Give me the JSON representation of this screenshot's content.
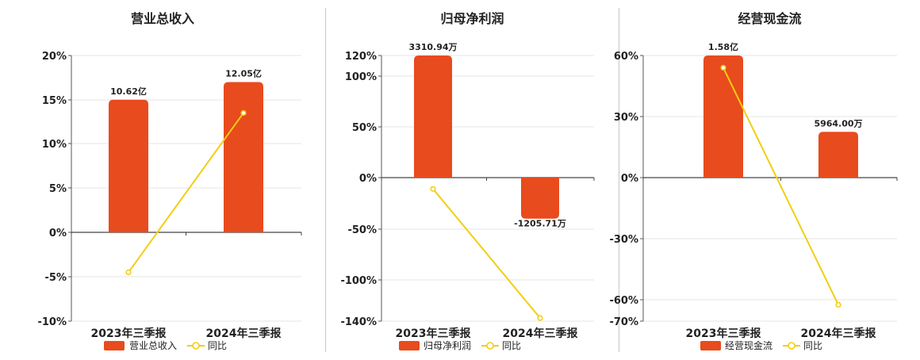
{
  "colors": {
    "bar": "#E84B1D",
    "line": "#F2CE12",
    "grid": "#e6e6e6",
    "axis": "#555555"
  },
  "chart_data": [
    {
      "type": "bar",
      "title": "营业总收入",
      "categories": [
        "2023年三季报",
        "2024年三季报"
      ],
      "series": [
        {
          "name": "营业总收入",
          "type": "bar",
          "values": [
            15.0,
            17.0
          ],
          "labels": [
            "10.62亿",
            "12.05亿"
          ]
        },
        {
          "name": "同比",
          "type": "line",
          "values": [
            -4.5,
            13.5
          ]
        }
      ],
      "yticks": [
        "20%",
        "15%",
        "10%",
        "5%",
        "0%",
        "-5%",
        "-10%"
      ],
      "ylim": [
        -10,
        20
      ],
      "grid": true,
      "legend_position": "bottom"
    },
    {
      "type": "bar",
      "title": "归母净利润",
      "categories": [
        "2023年三季报",
        "2024年三季报"
      ],
      "series": [
        {
          "name": "归母净利润",
          "type": "bar",
          "values": [
            120,
            -40
          ],
          "labels": [
            "3310.94万",
            "-1205.71万"
          ]
        },
        {
          "name": "同比",
          "type": "line",
          "values": [
            -11,
            -137
          ]
        }
      ],
      "yticks": [
        "120%",
        "100%",
        "50%",
        "0%",
        "-50%",
        "-100%",
        "-140%"
      ],
      "ylim": [
        -140,
        120
      ],
      "grid": true,
      "legend_position": "bottom"
    },
    {
      "type": "bar",
      "title": "经营现金流",
      "categories": [
        "2023年三季报",
        "2024年三季报"
      ],
      "series": [
        {
          "name": "经营现金流",
          "type": "bar",
          "values": [
            60,
            22.5
          ],
          "labels": [
            "1.58亿",
            "5964.00万"
          ]
        },
        {
          "name": "同比",
          "type": "line",
          "values": [
            54,
            -62
          ]
        }
      ],
      "yticks": [
        "60%",
        "30%",
        "0%",
        "-30%",
        "-60%",
        "-70%"
      ],
      "ylim": [
        -70,
        60
      ],
      "grid": true,
      "legend_position": "bottom"
    }
  ]
}
